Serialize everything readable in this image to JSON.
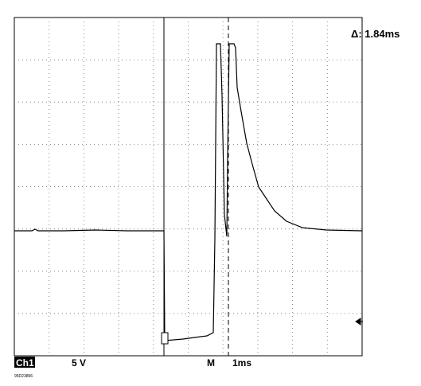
{
  "cursor_readout": "Δ: 1.84ms",
  "status": {
    "channel": "Ch1",
    "volts_per_div": "5 V",
    "timebase_label": "M",
    "time_per_div": "1ms"
  },
  "footer_code": "95D23856"
}
